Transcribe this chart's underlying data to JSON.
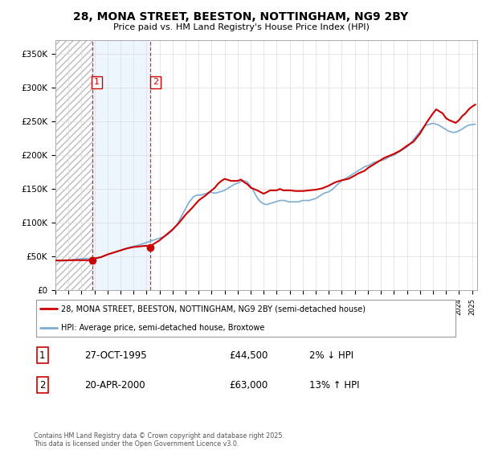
{
  "title": "28, MONA STREET, BEESTON, NOTTINGHAM, NG9 2BY",
  "subtitle": "Price paid vs. HM Land Registry's House Price Index (HPI)",
  "ylim": [
    0,
    370000
  ],
  "yticks": [
    0,
    50000,
    100000,
    150000,
    200000,
    250000,
    300000,
    350000
  ],
  "ytick_labels": [
    "£0",
    "£50K",
    "£100K",
    "£150K",
    "£200K",
    "£250K",
    "£300K",
    "£350K"
  ],
  "transaction1": {
    "date": "27-OCT-1995",
    "price": 44500,
    "hpi_diff": "2% ↓ HPI",
    "label": "1"
  },
  "transaction2": {
    "date": "20-APR-2000",
    "price": 63000,
    "hpi_diff": "13% ↑ HPI",
    "label": "2"
  },
  "vline1_x": 1995.81,
  "vline2_x": 2000.3,
  "legend_line1": "28, MONA STREET, BEESTON, NOTTINGHAM, NG9 2BY (semi-detached house)",
  "legend_line2": "HPI: Average price, semi-detached house, Broxtowe",
  "footer": "Contains HM Land Registry data © Crown copyright and database right 2025.\nThis data is licensed under the Open Government Licence v3.0.",
  "line_color_property": "#cc0000",
  "line_color_hpi": "#7dadd4",
  "marker_color": "#cc0000",
  "xlim_left": 1993.0,
  "xlim_right": 2025.4,
  "hpi_x": [
    1993.0,
    1993.08,
    1993.17,
    1993.25,
    1993.33,
    1993.42,
    1993.5,
    1993.58,
    1993.67,
    1993.75,
    1993.83,
    1993.92,
    1994.0,
    1994.08,
    1994.17,
    1994.25,
    1994.33,
    1994.42,
    1994.5,
    1994.58,
    1994.67,
    1994.75,
    1994.83,
    1994.92,
    1995.0,
    1995.08,
    1995.17,
    1995.25,
    1995.33,
    1995.42,
    1995.5,
    1995.58,
    1995.67,
    1995.75,
    1995.83,
    1995.92,
    1996.0,
    1996.08,
    1996.17,
    1996.25,
    1996.33,
    1996.42,
    1996.5,
    1996.58,
    1996.67,
    1996.75,
    1996.83,
    1996.92,
    1997.0,
    1997.08,
    1997.17,
    1997.25,
    1997.33,
    1997.42,
    1997.5,
    1997.58,
    1997.67,
    1997.75,
    1997.83,
    1997.92,
    1998.0,
    1998.08,
    1998.17,
    1998.25,
    1998.33,
    1998.42,
    1998.5,
    1998.58,
    1998.67,
    1998.75,
    1998.83,
    1998.92,
    1999.0,
    1999.08,
    1999.17,
    1999.25,
    1999.33,
    1999.42,
    1999.5,
    1999.58,
    1999.67,
    1999.75,
    1999.83,
    1999.92,
    2000.0,
    2000.08,
    2000.17,
    2000.25,
    2000.33,
    2000.42,
    2000.5,
    2000.58,
    2000.67,
    2000.75,
    2000.83,
    2000.92,
    2001.0,
    2001.08,
    2001.17,
    2001.25,
    2001.33,
    2001.42,
    2001.5,
    2001.58,
    2001.67,
    2001.75,
    2001.83,
    2001.92,
    2002.0,
    2002.08,
    2002.17,
    2002.25,
    2002.33,
    2002.42,
    2002.5,
    2002.58,
    2002.67,
    2002.75,
    2002.83,
    2002.92,
    2003.0,
    2003.08,
    2003.17,
    2003.25,
    2003.33,
    2003.42,
    2003.5,
    2003.58,
    2003.67,
    2003.75,
    2003.83,
    2003.92,
    2004.0,
    2004.08,
    2004.17,
    2004.25,
    2004.33,
    2004.42,
    2004.5,
    2004.58,
    2004.67,
    2004.75,
    2004.83,
    2004.92,
    2005.0,
    2005.08,
    2005.17,
    2005.25,
    2005.33,
    2005.42,
    2005.5,
    2005.58,
    2005.67,
    2005.75,
    2005.83,
    2005.92,
    2006.0,
    2006.08,
    2006.17,
    2006.25,
    2006.33,
    2006.42,
    2006.5,
    2006.58,
    2006.67,
    2006.75,
    2006.83,
    2006.92,
    2007.0,
    2007.08,
    2007.17,
    2007.25,
    2007.33,
    2007.42,
    2007.5,
    2007.58,
    2007.67,
    2007.75,
    2007.83,
    2007.92,
    2008.0,
    2008.08,
    2008.17,
    2008.25,
    2008.33,
    2008.42,
    2008.5,
    2008.58,
    2008.67,
    2008.75,
    2008.83,
    2008.92,
    2009.0,
    2009.08,
    2009.17,
    2009.25,
    2009.33,
    2009.42,
    2009.5,
    2009.58,
    2009.67,
    2009.75,
    2009.83,
    2009.92,
    2010.0,
    2010.08,
    2010.17,
    2010.25,
    2010.33,
    2010.42,
    2010.5,
    2010.58,
    2010.67,
    2010.75,
    2010.83,
    2010.92,
    2011.0,
    2011.08,
    2011.17,
    2011.25,
    2011.33,
    2011.42,
    2011.5,
    2011.58,
    2011.67,
    2011.75,
    2011.83,
    2011.92,
    2012.0,
    2012.08,
    2012.17,
    2012.25,
    2012.33,
    2012.42,
    2012.5,
    2012.58,
    2012.67,
    2012.75,
    2012.83,
    2012.92,
    2013.0,
    2013.08,
    2013.17,
    2013.25,
    2013.33,
    2013.42,
    2013.5,
    2013.58,
    2013.67,
    2013.75,
    2013.83,
    2013.92,
    2014.0,
    2014.08,
    2014.17,
    2014.25,
    2014.33,
    2014.42,
    2014.5,
    2014.58,
    2014.67,
    2014.75,
    2014.83,
    2014.92,
    2015.0,
    2015.08,
    2015.17,
    2015.25,
    2015.33,
    2015.42,
    2015.5,
    2015.58,
    2015.67,
    2015.75,
    2015.83,
    2015.92,
    2016.0,
    2016.08,
    2016.17,
    2016.25,
    2016.33,
    2016.42,
    2016.5,
    2016.58,
    2016.67,
    2016.75,
    2016.83,
    2016.92,
    2017.0,
    2017.08,
    2017.17,
    2017.25,
    2017.33,
    2017.42,
    2017.5,
    2017.58,
    2017.67,
    2017.75,
    2017.83,
    2017.92,
    2018.0,
    2018.08,
    2018.17,
    2018.25,
    2018.33,
    2018.42,
    2018.5,
    2018.58,
    2018.67,
    2018.75,
    2018.83,
    2018.92,
    2019.0,
    2019.08,
    2019.17,
    2019.25,
    2019.33,
    2019.42,
    2019.5,
    2019.58,
    2019.67,
    2019.75,
    2019.83,
    2019.92,
    2020.0,
    2020.08,
    2020.17,
    2020.25,
    2020.33,
    2020.42,
    2020.5,
    2020.58,
    2020.67,
    2020.75,
    2020.83,
    2020.92,
    2021.0,
    2021.08,
    2021.17,
    2021.25,
    2021.33,
    2021.42,
    2021.5,
    2021.58,
    2021.67,
    2021.75,
    2021.83,
    2021.92,
    2022.0,
    2022.08,
    2022.17,
    2022.25,
    2022.33,
    2022.42,
    2022.5,
    2022.58,
    2022.67,
    2022.75,
    2022.83,
    2022.92,
    2023.0,
    2023.08,
    2023.17,
    2023.25,
    2023.33,
    2023.42,
    2023.5,
    2023.58,
    2023.67,
    2023.75,
    2023.83,
    2023.92,
    2024.0,
    2024.08,
    2024.17,
    2024.25,
    2024.33,
    2024.42,
    2024.5,
    2024.58,
    2024.67,
    2024.75,
    2024.83,
    2024.92,
    2025.0,
    2025.08,
    2025.17,
    2025.25
  ],
  "hpi_y": [
    44000,
    44200,
    44100,
    43900,
    43700,
    43500,
    43400,
    43300,
    43400,
    43600,
    43800,
    44000,
    44200,
    44500,
    44800,
    45000,
    45200,
    45500,
    45700,
    45900,
    46100,
    46300,
    46400,
    46500,
    46600,
    46700,
    46700,
    46700,
    46800,
    46900,
    47000,
    47100,
    47100,
    47100,
    47000,
    47000,
    47200,
    47500,
    47800,
    48100,
    48500,
    49000,
    49500,
    50000,
    50500,
    51000,
    51500,
    52000,
    52500,
    53000,
    53600,
    54200,
    54800,
    55400,
    56000,
    56600,
    57200,
    57800,
    58400,
    59000,
    59500,
    60000,
    60500,
    61000,
    61500,
    62000,
    62500,
    63000,
    63500,
    63900,
    64300,
    64700,
    65000,
    65400,
    65800,
    66200,
    66600,
    67100,
    67600,
    68100,
    68600,
    69100,
    69600,
    70100,
    70600,
    71100,
    71700,
    72300,
    72900,
    73500,
    74000,
    74500,
    75000,
    75500,
    76000,
    76500,
    77000,
    77600,
    78200,
    78800,
    79400,
    80000,
    81000,
    82000,
    83000,
    84500,
    86000,
    87500,
    89000,
    91000,
    93000,
    95000,
    97500,
    100000,
    103000,
    106000,
    109000,
    112000,
    115000,
    118000,
    121000,
    124000,
    127000,
    130000,
    132000,
    134000,
    136000,
    138000,
    139000,
    140000,
    140500,
    141000,
    141000,
    141000,
    141000,
    141500,
    142000,
    142500,
    143000,
    143500,
    144000,
    144500,
    145000,
    145500,
    145000,
    144500,
    144000,
    144000,
    144000,
    144500,
    145000,
    145500,
    146000,
    146500,
    147000,
    147500,
    148000,
    149000,
    150000,
    151000,
    152000,
    153000,
    154000,
    155000,
    156000,
    157000,
    157500,
    158000,
    158500,
    159000,
    160000,
    161000,
    162000,
    162500,
    162000,
    161500,
    161000,
    160000,
    158000,
    156000,
    154000,
    152000,
    149000,
    146000,
    143000,
    140000,
    137000,
    135000,
    133000,
    131000,
    130000,
    129000,
    128000,
    127500,
    127000,
    127000,
    127500,
    128000,
    128500,
    129000,
    129500,
    130000,
    130500,
    131000,
    131500,
    132000,
    132500,
    133000,
    133000,
    133000,
    133000,
    133000,
    132500,
    132000,
    131500,
    131000,
    131000,
    131000,
    131000,
    131000,
    131000,
    131000,
    131000,
    131000,
    131000,
    131500,
    132000,
    132500,
    133000,
    133000,
    133000,
    133000,
    133000,
    133000,
    133000,
    133500,
    134000,
    134500,
    135000,
    135500,
    136000,
    137000,
    138000,
    139000,
    140000,
    141000,
    142000,
    143000,
    144000,
    144500,
    145000,
    145500,
    146000,
    147000,
    148000,
    149000,
    150500,
    152000,
    153500,
    155000,
    156500,
    158000,
    159500,
    161000,
    162000,
    163000,
    164000,
    165000,
    166000,
    167000,
    168000,
    169000,
    170000,
    171000,
    172000,
    173000,
    174000,
    175000,
    176000,
    177000,
    178000,
    179000,
    180000,
    181000,
    182000,
    183000,
    183500,
    184000,
    184500,
    185000,
    186000,
    187000,
    188000,
    189000,
    189500,
    190000,
    190500,
    191000,
    191500,
    192000,
    192000,
    192500,
    193000,
    193500,
    194000,
    195000,
    196000,
    197000,
    198000,
    198500,
    199000,
    199500,
    200000,
    201000,
    202000,
    203000,
    204000,
    205000,
    206000,
    207000,
    208000,
    209000,
    210000,
    211000,
    212000,
    213500,
    215000,
    217000,
    219000,
    221000,
    223000,
    225000,
    227000,
    229000,
    231000,
    233000,
    235000,
    237000,
    239000,
    241000,
    243000,
    244000,
    244500,
    245000,
    245500,
    246000,
    246500,
    247000,
    247000,
    247000,
    246500,
    246000,
    245500,
    245000,
    244000,
    243000,
    242000,
    241000,
    240000,
    239500,
    238000,
    237000,
    236000,
    235500,
    235000,
    234500,
    234000,
    234000,
    234000,
    234500,
    235000,
    235500,
    236000,
    237000,
    238000,
    239000,
    240000,
    241000,
    242000,
    243000,
    244000,
    244500,
    245000,
    245300,
    245500,
    245700,
    245800,
    245900
  ],
  "prop_x": [
    1993.0,
    1993.5,
    1994.0,
    1994.5,
    1995.0,
    1995.81,
    1996.0,
    1996.5,
    1997.0,
    1997.5,
    1998.0,
    1998.5,
    1999.0,
    1999.5,
    2000.0,
    2000.3,
    2000.5,
    2001.0,
    2001.5,
    2002.0,
    2002.5,
    2003.0,
    2003.5,
    2004.0,
    2004.5,
    2005.0,
    2005.25,
    2005.5,
    2005.75,
    2006.0,
    2006.5,
    2007.0,
    2007.25,
    2007.5,
    2007.75,
    2008.0,
    2008.5,
    2009.0,
    2009.5,
    2010.0,
    2010.25,
    2010.5,
    2011.0,
    2011.5,
    2012.0,
    2012.5,
    2013.0,
    2013.5,
    2014.0,
    2014.5,
    2015.0,
    2015.5,
    2016.0,
    2016.25,
    2016.5,
    2016.75,
    2017.0,
    2017.5,
    2018.0,
    2018.25,
    2018.5,
    2018.75,
    2019.0,
    2019.5,
    2020.0,
    2020.5,
    2021.0,
    2021.25,
    2021.5,
    2021.75,
    2022.0,
    2022.25,
    2022.5,
    2022.75,
    2023.0,
    2023.25,
    2023.5,
    2023.75,
    2024.0,
    2024.25,
    2024.5,
    2024.75,
    2025.0,
    2025.25
  ],
  "prop_y": [
    44000,
    44200,
    44500,
    44600,
    44500,
    44500,
    47000,
    49000,
    53000,
    56000,
    59000,
    62000,
    64000,
    65000,
    66000,
    63000,
    68000,
    74000,
    82000,
    90000,
    100000,
    112000,
    122000,
    133000,
    140000,
    148000,
    152000,
    158000,
    162000,
    165000,
    162000,
    162000,
    164000,
    160000,
    157000,
    152000,
    148000,
    143000,
    148000,
    148000,
    150000,
    148000,
    148000,
    147000,
    147000,
    148000,
    149000,
    151000,
    155000,
    160000,
    163000,
    165000,
    170000,
    173000,
    175000,
    177000,
    181000,
    187000,
    193000,
    196000,
    198000,
    200000,
    202000,
    207000,
    214000,
    220000,
    232000,
    240000,
    248000,
    255000,
    262000,
    268000,
    265000,
    262000,
    255000,
    252000,
    250000,
    248000,
    252000,
    258000,
    262000,
    268000,
    272000,
    275000
  ]
}
